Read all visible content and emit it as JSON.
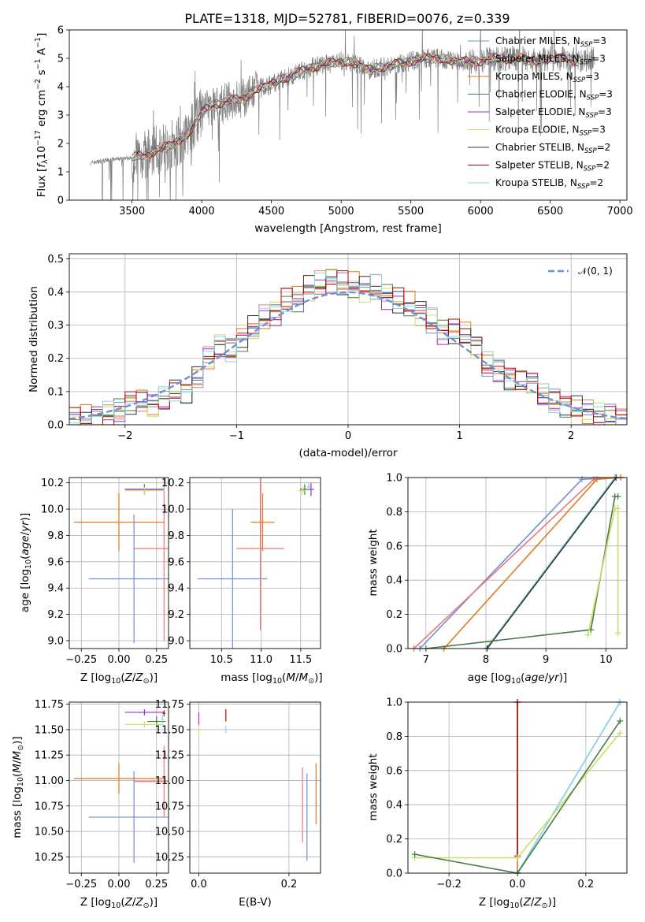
{
  "title": "PLATE=1318, MJD=52781, FIBERID=0076, z=0.339",
  "colors": {
    "Chabrier MILES": "#6f8fdb",
    "Salpeter MILES": "#ee7777",
    "Kroupa MILES": "#e07a1f",
    "Chabrier ELODIE": "#4a7a4a",
    "Salpeter ELODIE": "#9b30c0",
    "Kroupa ELODIE": "#c8e060",
    "Chabrier STELIB": "#333333",
    "Salpeter STELIB": "#c00000",
    "Kroupa STELIB": "#88d8e0",
    "data": "#808080",
    "normal": "#6f8fdb"
  },
  "chart_data": [
    {
      "type": "line",
      "id": "spectrum",
      "title": "PLATE=1318, MJD=52781, FIBERID=0076, z=0.339",
      "xlabel": "wavelength [Angstrom, rest frame]",
      "ylabel": "Flux [f_λ10^-17 erg cm^-2 s^-1 A^-1]",
      "xlim": [
        3050,
        7050
      ],
      "ylim": [
        0,
        6
      ],
      "xticks": [
        "3500",
        "4000",
        "4500",
        "5000",
        "5500",
        "6000",
        "6500",
        "7000"
      ],
      "yticks": [
        "0",
        "1",
        "2",
        "3",
        "4",
        "5",
        "6"
      ],
      "legend_position": "upper right",
      "series": [
        {
          "name": "Chabrier MILES, N_SSP=3",
          "legend": "Chabrier MILES, N",
          "sub": "SSP",
          "suffix": "=3",
          "key": "Chabrier MILES"
        },
        {
          "name": "Salpeter MILES, N_SSP=3",
          "legend": "Salpeter MILES, N",
          "sub": "SSP",
          "suffix": "=3",
          "key": "Salpeter MILES"
        },
        {
          "name": "Kroupa MILES, N_SSP=3",
          "legend": "Kroupa MILES, N",
          "sub": "SSP",
          "suffix": "=3",
          "key": "Kroupa MILES"
        },
        {
          "name": "Chabrier ELODIE, N_SSP=3",
          "legend": "Chabrier ELODIE, N",
          "sub": "SSP",
          "suffix": "=3",
          "key": "Chabrier ELODIE"
        },
        {
          "name": "Salpeter ELODIE, N_SSP=3",
          "legend": "Salpeter ELODIE, N",
          "sub": "SSP",
          "suffix": "=3",
          "key": "Salpeter ELODIE"
        },
        {
          "name": "Kroupa ELODIE, N_SSP=3",
          "legend": "Kroupa ELODIE, N",
          "sub": "SSP",
          "suffix": "=3",
          "key": "Kroupa ELODIE"
        },
        {
          "name": "Chabrier STELIB, N_SSP=2",
          "legend": "Chabrier STELIB, N",
          "sub": "SSP",
          "suffix": "=2",
          "key": "Chabrier STELIB"
        },
        {
          "name": "Salpeter STELIB, N_SSP=2",
          "legend": "Salpeter STELIB, N",
          "sub": "SSP",
          "suffix": "=2",
          "key": "Salpeter STELIB"
        },
        {
          "name": "Kroupa STELIB, N_SSP=2",
          "legend": "Kroupa STELIB, N",
          "sub": "SSP",
          "suffix": "=2",
          "key": "Kroupa STELIB"
        }
      ],
      "continuum": {
        "x": [
          3200,
          3300,
          3400,
          3500,
          3600,
          3700,
          3800,
          3900,
          4000,
          4100,
          4200,
          4300,
          4400,
          4500,
          4600,
          4700,
          4800,
          4900,
          5000,
          5100,
          5200,
          5300,
          5400,
          5500,
          5600,
          5700,
          5800,
          5900,
          6000,
          6100,
          6200,
          6300,
          6400,
          6500,
          6600,
          6700,
          6800
        ],
        "y": [
          1.3,
          1.4,
          1.45,
          1.5,
          1.6,
          1.8,
          2.0,
          2.3,
          3.1,
          3.4,
          3.5,
          3.6,
          3.9,
          4.1,
          4.3,
          4.5,
          4.7,
          4.8,
          4.9,
          4.8,
          4.6,
          4.7,
          4.8,
          4.9,
          5.0,
          5.0,
          4.9,
          4.9,
          4.9,
          5.0,
          5.0,
          5.0,
          4.9,
          5.0,
          5.0,
          4.9,
          5.0
        ]
      }
    },
    {
      "type": "bar",
      "id": "residuals",
      "xlabel": "(data-model)/error",
      "ylabel": "Normed distribution",
      "xlim": [
        -2.5,
        2.5
      ],
      "ylim": [
        0,
        0.515
      ],
      "xticks": [
        "−2",
        "−1",
        "0",
        "1",
        "2"
      ],
      "yticks": [
        "0.0",
        "0.1",
        "0.2",
        "0.3",
        "0.4",
        "0.5"
      ],
      "legend": "𝒩(0, 1)",
      "bin_width": 0.1,
      "bin_start": -2.5,
      "histogram": [
        0.015,
        0.02,
        0.025,
        0.03,
        0.04,
        0.07,
        0.07,
        0.06,
        0.08,
        0.1,
        0.1,
        0.14,
        0.2,
        0.24,
        0.22,
        0.26,
        0.29,
        0.32,
        0.34,
        0.37,
        0.38,
        0.41,
        0.42,
        0.44,
        0.42,
        0.42,
        0.41,
        0.41,
        0.39,
        0.37,
        0.36,
        0.34,
        0.31,
        0.28,
        0.28,
        0.27,
        0.24,
        0.18,
        0.16,
        0.14,
        0.13,
        0.13,
        0.09,
        0.07,
        0.06,
        0.05,
        0.04,
        0.03,
        0.02,
        0.02
      ]
    },
    {
      "type": "scatter",
      "id": "age-vs-Z",
      "xlabel": "Z [log10(Z/Z⊙)]",
      "ylabel": "age [log10(age/yr)]",
      "xlim": [
        -0.33,
        0.33
      ],
      "ylim": [
        8.94,
        10.24
      ],
      "xticks": [
        "−0.25",
        "0.00",
        "0.25"
      ],
      "yticks": [
        "9.0",
        "9.2",
        "9.4",
        "9.6",
        "9.8",
        "10.0",
        "10.2"
      ],
      "points": [
        {
          "key": "Chabrier MILES",
          "x": 0.1,
          "xerr": 0.3,
          "y": 9.47,
          "yerr": 0.49
        },
        {
          "key": "Salpeter MILES",
          "x": 0.3,
          "xerr": 0.2,
          "y": 9.7,
          "yerr": 0.7
        },
        {
          "key": "Kroupa MILES",
          "x": 0.0,
          "xerr": 0.3,
          "y": 9.9,
          "yerr": 0.22
        },
        {
          "key": "Chabrier ELODIE",
          "x": 0.17,
          "xerr": 0.13,
          "y": 10.15,
          "yerr": 0.04
        },
        {
          "key": "Salpeter ELODIE",
          "x": 0.17,
          "xerr": 0.13,
          "y": 10.15,
          "yerr": 0.03
        },
        {
          "key": "Kroupa ELODIE",
          "x": 0.17,
          "xerr": 0.13,
          "y": 10.14,
          "yerr": 0.03
        },
        {
          "key": "Kroupa STELIB",
          "x": 0.3,
          "xerr": 0.01,
          "y": 10.17,
          "yerr": 0.03
        }
      ]
    },
    {
      "type": "scatter",
      "id": "age-vs-mass",
      "xlabel": "mass [log10(M/M⊙)]",
      "ylabel": "",
      "xlim": [
        10.1,
        11.75
      ],
      "ylim": [
        8.94,
        10.24
      ],
      "xticks": [
        "10.5",
        "11.0",
        "11.5"
      ],
      "yticks": [
        "9.0",
        "9.2",
        "9.4",
        "9.6",
        "9.8",
        "10.0",
        "10.2"
      ],
      "points": [
        {
          "key": "Chabrier MILES",
          "x": 10.64,
          "xerr": 0.44,
          "y": 9.47,
          "yerr": 0.53
        },
        {
          "key": "Salpeter MILES",
          "x": 10.99,
          "xerr": 0.3,
          "y": 9.7,
          "yerr": 0.62
        },
        {
          "key": "Kroupa MILES",
          "x": 11.02,
          "xerr": 0.15,
          "y": 9.9,
          "yerr": 0.22
        },
        {
          "key": "Chabrier ELODIE",
          "x": 11.55,
          "xerr": 0.06,
          "y": 10.15,
          "yerr": 0.04
        },
        {
          "key": "Salpeter ELODIE",
          "x": 11.63,
          "xerr": 0.04,
          "y": 10.15,
          "yerr": 0.05
        },
        {
          "key": "Kroupa ELODIE",
          "x": 11.52,
          "xerr": 0.05,
          "y": 10.14,
          "yerr": 0.03
        },
        {
          "key": "Kroupa STELIB",
          "x": 11.6,
          "xerr": 0.02,
          "y": 10.17,
          "yerr": 0.03
        }
      ]
    },
    {
      "type": "line",
      "id": "cumulative-mass-vs-age",
      "xlabel": "age [log10(age/yr)]",
      "ylabel": "mass weight",
      "xlim": [
        6.7,
        10.35
      ],
      "ylim": [
        0,
        1
      ],
      "xticks": [
        "7",
        "8",
        "9",
        "10"
      ],
      "yticks": [
        "0.0",
        "0.2",
        "0.4",
        "0.6",
        "0.8",
        "1.0"
      ],
      "series": [
        {
          "key": "Chabrier MILES",
          "x": [
            6.9,
            9.6,
            10.25
          ],
          "y": [
            0,
            0.99,
            1.0
          ]
        },
        {
          "key": "Salpeter MILES",
          "x": [
            6.8,
            9.8,
            10.25
          ],
          "y": [
            0,
            0.99,
            1.0
          ]
        },
        {
          "key": "Kroupa MILES",
          "x": [
            7.3,
            9.85,
            10.25
          ],
          "y": [
            0,
            0.99,
            1.0
          ]
        },
        {
          "key": "Kroupa STELIB",
          "x": [
            8.0,
            10.15
          ],
          "y": [
            0,
            1.0
          ]
        },
        {
          "key": "Chabrier STELIB",
          "x": [
            8.02,
            10.17
          ],
          "y": [
            0,
            1.0
          ]
        },
        {
          "key": "Chabrier ELODIE",
          "x": [
            7.0,
            9.75,
            10.15,
            10.2
          ],
          "y": [
            0,
            0.11,
            0.89,
            0.89
          ]
        },
        {
          "key": "Kroupa ELODIE",
          "x": [
            9.7,
            10.15,
            10.2,
            10.2
          ],
          "y": [
            0.08,
            0.82,
            0.82,
            0.09
          ]
        }
      ]
    },
    {
      "type": "scatter",
      "id": "mass-vs-Z",
      "xlabel": "Z [log10(Z/Z⊙)]",
      "ylabel": "mass [log10(M/M⊙)]",
      "xlim": [
        -0.33,
        0.33
      ],
      "ylim": [
        10.09,
        11.77
      ],
      "xticks": [
        "−0.25",
        "0.00",
        "0.25"
      ],
      "yticks": [
        "10.25",
        "10.50",
        "10.75",
        "11.00",
        "11.25",
        "11.50",
        "11.75"
      ],
      "points": [
        {
          "key": "Chabrier MILES",
          "x": 0.1,
          "xerr": 0.3,
          "y": 10.64,
          "yerr": 0.45
        },
        {
          "key": "Salpeter MILES",
          "x": 0.3,
          "xerr": 0.2,
          "y": 10.99,
          "yerr": 0.35
        },
        {
          "key": "Kroupa MILES",
          "x": 0.0,
          "xerr": 0.3,
          "y": 11.02,
          "yerr": 0.15
        },
        {
          "key": "Chabrier ELODIE",
          "x": 0.25,
          "xerr": 0.06,
          "y": 11.58,
          "yerr": 0.05
        },
        {
          "key": "Salpeter ELODIE",
          "x": 0.17,
          "xerr": 0.13,
          "y": 11.67,
          "yerr": 0.03
        },
        {
          "key": "Kroupa ELODIE",
          "x": 0.17,
          "xerr": 0.13,
          "y": 11.55,
          "yerr": 0.03
        },
        {
          "key": "Salpeter STELIB",
          "x": 0.3,
          "xerr": 0.01,
          "y": 11.66,
          "yerr": 0.03
        },
        {
          "key": "Kroupa STELIB",
          "x": 0.29,
          "xerr": 0.01,
          "y": 11.6,
          "yerr": 0.04
        }
      ]
    },
    {
      "type": "scatter",
      "id": "mass-vs-EBV",
      "xlabel": "E(B-V)",
      "ylabel": "",
      "xlim": [
        -0.02,
        0.27
      ],
      "ylim": [
        10.09,
        11.77
      ],
      "xticks": [
        "0.0",
        "0.2"
      ],
      "yticks": [
        "10.25",
        "10.50",
        "10.75",
        "11.00",
        "11.25",
        "11.50",
        "11.75"
      ],
      "points": [
        {
          "key": "Chabrier MILES",
          "x": 0.24,
          "xerr": 0,
          "y": 10.64,
          "yerr": 0.43
        },
        {
          "key": "Salpeter MILES",
          "x": 0.23,
          "xerr": 0,
          "y": 10.76,
          "yerr": 0.37
        },
        {
          "key": "Kroupa MILES",
          "x": 0.26,
          "xerr": 0,
          "y": 10.87,
          "yerr": 0.3
        },
        {
          "key": "Salpeter ELODIE",
          "x": 0.0,
          "xerr": 0,
          "y": 11.6,
          "yerr": 0.07
        },
        {
          "key": "Kroupa ELODIE",
          "x": 0.0,
          "xerr": 0,
          "y": 11.48,
          "yerr": 0.07
        },
        {
          "key": "Salpeter STELIB",
          "x": 0.06,
          "xerr": 0,
          "y": 11.64,
          "yerr": 0.06
        },
        {
          "key": "Kroupa STELIB",
          "x": 0.06,
          "xerr": 0,
          "y": 11.5,
          "yerr": 0.04
        }
      ]
    },
    {
      "type": "line",
      "id": "cumulative-mass-vs-Z",
      "xlabel": "Z [log10(Z/Z⊙)]",
      "ylabel": "mass weight",
      "xlim": [
        -0.32,
        0.32
      ],
      "ylim": [
        0,
        1
      ],
      "xticks": [
        "−0.2",
        "0.0",
        "0.2"
      ],
      "yticks": [
        "0.0",
        "0.2",
        "0.4",
        "0.6",
        "0.8",
        "1.0"
      ],
      "series": [
        {
          "key": "Kroupa MILES",
          "x": [
            0.0,
            0.0
          ],
          "y": [
            0,
            1.0
          ]
        },
        {
          "key": "Salpeter STELIB",
          "x": [
            0.0,
            0.0
          ],
          "y": [
            0.1,
            1.0
          ]
        },
        {
          "key": "Chabrier MILES",
          "x": [
            0.0,
            0.3
          ],
          "y": [
            0,
            1.0
          ]
        },
        {
          "key": "Kroupa STELIB",
          "x": [
            0.0,
            0.3
          ],
          "y": [
            0,
            1.0
          ]
        },
        {
          "key": "Kroupa ELODIE",
          "x": [
            -0.3,
            0.0,
            0.3
          ],
          "y": [
            0.09,
            0.09,
            0.82
          ]
        },
        {
          "key": "Chabrier ELODIE",
          "x": [
            -0.3,
            0.0,
            0.3
          ],
          "y": [
            0.11,
            0.0,
            0.89
          ]
        }
      ]
    }
  ]
}
